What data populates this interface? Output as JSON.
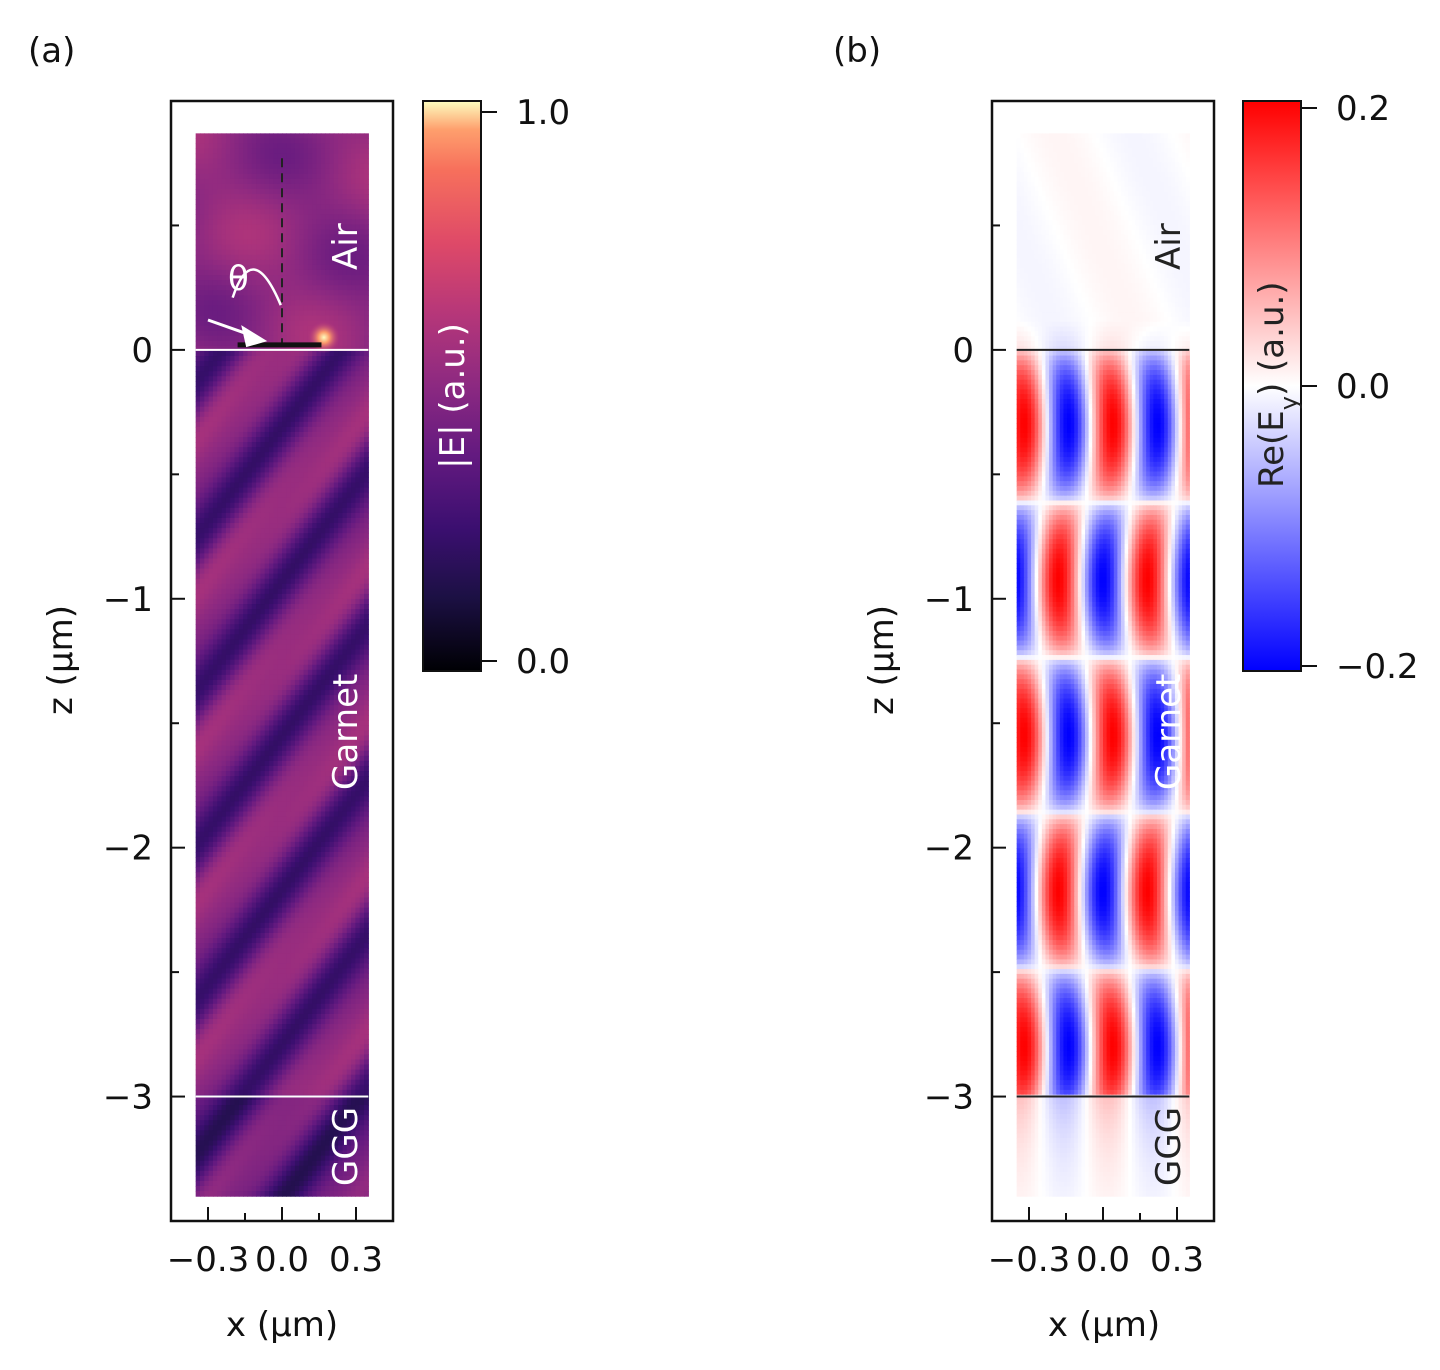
{
  "chart_data": [
    {
      "type": "heatmap",
      "panel": "(a)",
      "quantity": "|E| (a.u.)",
      "xlabel": "x (μm)",
      "ylabel": "z (μm)",
      "xlim": [
        -0.45,
        0.45
      ],
      "ylim": [
        -3.5,
        1.0
      ],
      "data_extent_x": [
        -0.35,
        0.35
      ],
      "data_extent_z": [
        -3.4,
        0.87
      ],
      "x_ticks": [
        -0.3,
        0.0,
        0.3
      ],
      "x_tick_labels": [
        "−0.3",
        "0.0",
        "0.3"
      ],
      "z_ticks": [
        0,
        -1,
        -2,
        -3
      ],
      "z_tick_labels": [
        "0",
        "−1",
        "−2",
        "−3"
      ],
      "colorbar": {
        "min": 0.0,
        "max": 1.0,
        "tick_labels": [
          "1.0",
          "0.0"
        ],
        "label": "|E| (a.u.)",
        "colormap": "magma"
      },
      "regions": [
        {
          "name": "Air",
          "z_range": [
            0.0,
            0.87
          ]
        },
        {
          "name": "Garnet",
          "z_range": [
            -3.0,
            0.0
          ]
        },
        {
          "name": "GGG",
          "z_range": [
            -3.4,
            -3.0
          ]
        }
      ],
      "interfaces_z": [
        0.0,
        -3.0
      ],
      "angle_label": "θ",
      "antenna": {
        "x_range": [
          -0.18,
          0.16
        ],
        "z": 0.0
      }
    },
    {
      "type": "heatmap",
      "panel": "(b)",
      "quantity": "Re(E_y) (a.u.)",
      "xlabel": "x (μm)",
      "ylabel": "z (μm)",
      "xlim": [
        -0.45,
        0.45
      ],
      "ylim": [
        -3.5,
        1.0
      ],
      "data_extent_x": [
        -0.35,
        0.35
      ],
      "data_extent_z": [
        -3.4,
        0.87
      ],
      "x_ticks": [
        -0.3,
        0.0,
        0.3
      ],
      "x_tick_labels": [
        "−0.3",
        "0.0",
        "0.3"
      ],
      "z_ticks": [
        0,
        -1,
        -2,
        -3
      ],
      "z_tick_labels": [
        "0",
        "−1",
        "−2",
        "−3"
      ],
      "colorbar": {
        "min": -0.2,
        "max": 0.2,
        "tick_labels": [
          "0.2",
          "0.0",
          "−0.2"
        ],
        "label_main": "Re(E",
        "label_sub": "y",
        "label_end": ") (a.u.)",
        "colormap": "bwr"
      },
      "regions": [
        {
          "name": "Air",
          "z_range": [
            0.0,
            0.87
          ]
        },
        {
          "name": "Garnet",
          "z_range": [
            -3.0,
            0.0
          ]
        },
        {
          "name": "GGG",
          "z_range": [
            -3.4,
            -3.0
          ]
        }
      ],
      "interfaces_z": [
        0.0,
        -3.0
      ]
    }
  ]
}
